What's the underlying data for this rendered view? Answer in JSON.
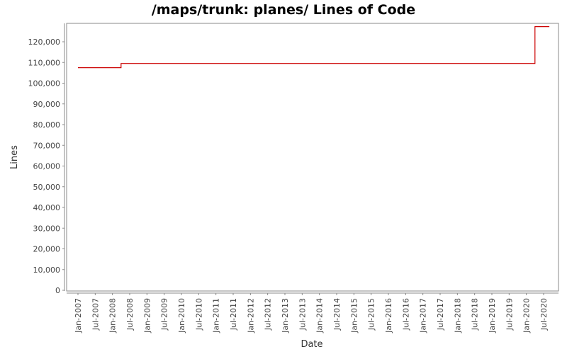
{
  "chart_data": {
    "type": "line",
    "title": "/maps/trunk: planes/ Lines of Code",
    "xlabel": "Date",
    "ylabel": "Lines",
    "ylim": [
      0,
      128000
    ],
    "y_ticks": [
      0,
      10000,
      20000,
      30000,
      40000,
      50000,
      60000,
      70000,
      80000,
      90000,
      100000,
      110000,
      120000
    ],
    "y_tick_labels": [
      "0",
      "10,000",
      "20,000",
      "30,000",
      "40,000",
      "50,000",
      "60,000",
      "70,000",
      "80,000",
      "90,000",
      "100,000",
      "110,000",
      "120,000"
    ],
    "x_tick_labels": [
      "Jan-2007",
      "Jul-2007",
      "Jan-2008",
      "Jul-2008",
      "Jan-2009",
      "Jul-2009",
      "Jan-2010",
      "Jul-2010",
      "Jan-2011",
      "Jul-2011",
      "Jan-2012",
      "Jul-2012",
      "Jan-2013",
      "Jul-2013",
      "Jan-2014",
      "Jul-2014",
      "Jan-2015",
      "Jul-2015",
      "Jan-2016",
      "Jul-2016",
      "Jan-2017",
      "Jul-2017",
      "Jan-2018",
      "Jul-2018",
      "Jan-2019",
      "Jul-2019",
      "Jan-2020",
      "Jul-2020"
    ],
    "step": true,
    "grid": false,
    "series": [
      {
        "name": "Lines",
        "color": "#cc0000",
        "points": [
          {
            "x": "Jan-2007",
            "y": 107500
          },
          {
            "x": "Apr-2008",
            "y": 107500
          },
          {
            "x": "Apr-2008",
            "y": 109500
          },
          {
            "x": "Apr-2020",
            "y": 109500
          },
          {
            "x": "Apr-2020",
            "y": 127300
          },
          {
            "x": "Sep-2020",
            "y": 127300
          }
        ]
      }
    ]
  },
  "colors": {
    "line": "#cc0000",
    "axis": "#888888",
    "tick_text": "#444444",
    "background": "#ffffff"
  }
}
